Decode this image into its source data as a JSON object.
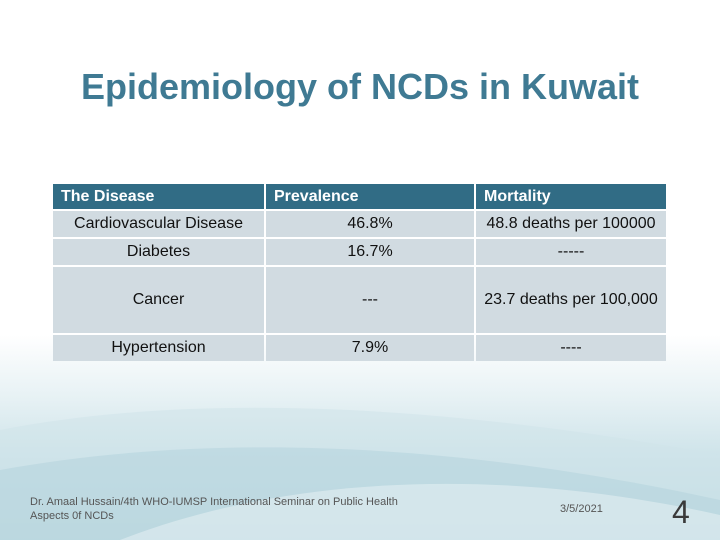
{
  "slide": {
    "title": "Epidemiology of NCDs in Kuwait",
    "footer_credit": "Dr. Amaal Hussain/4th WHO-IUMSP International Seminar on Public Health Aspects 0f NCDs",
    "date": "3/5/2021",
    "page_number": "4"
  },
  "table": {
    "headers": [
      "The Disease",
      "Prevalence",
      "Mortality"
    ],
    "rows": [
      [
        "Cardiovascular Disease",
        "46.8%",
        "48.8 deaths per 100000"
      ],
      [
        "Diabetes",
        "16.7%",
        "-----"
      ],
      [
        "Cancer",
        "---",
        "23.7 deaths per 100,000"
      ],
      [
        "Hypertension",
        "7.9%",
        "----"
      ]
    ]
  },
  "colors": {
    "title": "#3f7a93",
    "header_bg": "#316c85",
    "cell_bg": "#d1dbe1"
  }
}
